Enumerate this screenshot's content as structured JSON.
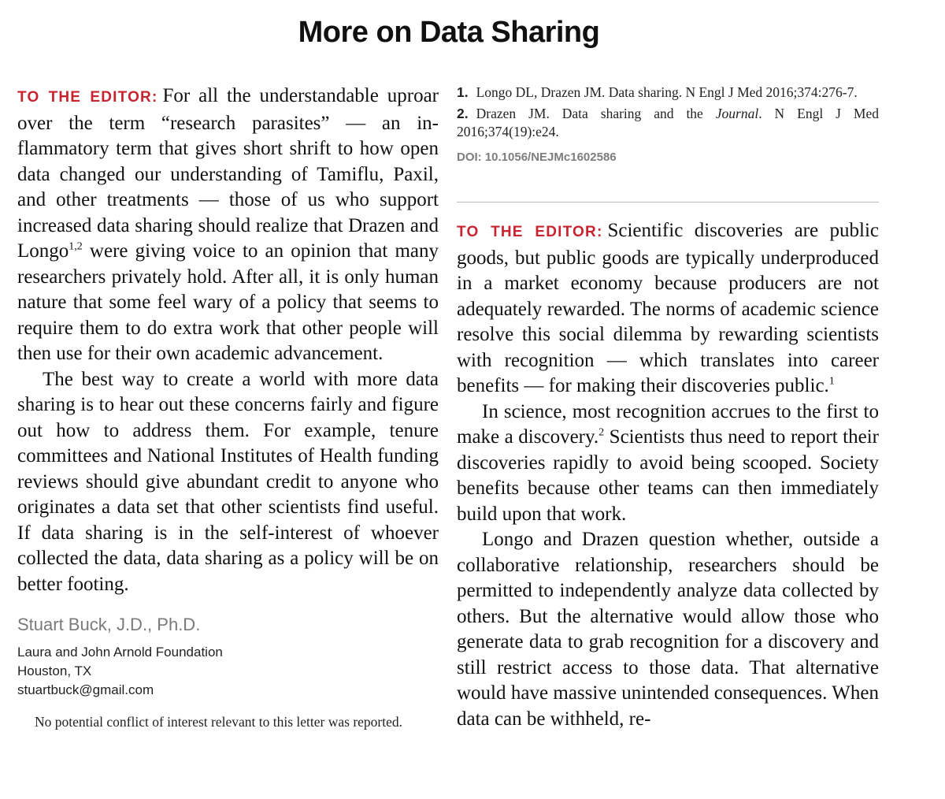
{
  "title": "More on Data Sharing",
  "letter1": {
    "kicker": "TO THE EDITOR:",
    "p1_part1": "For all the understandable up­roar over the term “research parasites” — an in­flammatory term that gives short shrift to how open data changed our understanding of Tamif­lu, Paxil, and other treatments — those of us who support increased data sharing should real­ize that Drazen and Longo",
    "p1_sup": "1,2",
    "p1_part2": " were giving voice to an opinion that many researchers privately hold. After all, it is only human nature that some feel wary of a policy that seems to require them to do extra work that other people will then use for their own academic advancement.",
    "p2": "The best way to create a world with more data sharing is to hear out these concerns fairly and figure out how to address them. For example, tenure committees and National Institutes of Health funding reviews should give abundant credit to anyone who originates a data set that other scientists find useful. If data sharing is in the self-interest of whoever collected the data, data sharing as a policy will be on better footing.",
    "author": "Stuart Buck, J.D., Ph.D.",
    "affiliation_line1": "Laura and John Arnold Foundation",
    "affiliation_line2": "Houston, TX",
    "email": "stuartbuck@gmail.com",
    "disclosure": "No potential conflict of interest relevant to this letter was re­ported."
  },
  "references": [
    {
      "num": "1.",
      "text_before": "Longo DL, Drazen JM. Data sharing. N Engl J Med 2016;374:​276-7.",
      "italic": "",
      "text_after": ""
    },
    {
      "num": "2.",
      "text_before": "Drazen JM. Data sharing and the ",
      "italic": "Journal",
      "text_after": ". N Engl J Med 2016;374(19):e24."
    }
  ],
  "doi": "DOI: 10.1056/NEJMc1602586",
  "letter2": {
    "kicker": "TO THE EDITOR:",
    "p1_text": "Scientific discoveries are public goods, but public goods are typically underpro­duced in a market economy because producers are not adequately rewarded. The norms of aca­demic science resolve this social dilemma by re­warding scientists with recognition — which translates into career benefits — for making their discoveries public.",
    "p1_sup": "1",
    "p2_part1": "In science, most recognition accrues to the first to make a discovery.",
    "p2_sup": "2",
    "p2_part2": " Scientists thus need to report their discoveries rapidly to avoid being scooped. Society benefits because other teams can then immediately build upon that work.",
    "p3": "Longo and Drazen question whether, outside a collaborative relationship, researchers should be permitted to independently analyze data col­lected by others. But the alternative would allow those who generate data to grab recognition for a discovery and still restrict access to those data. That alternative would have massive unintended consequences. When data can be withheld, re-"
  }
}
